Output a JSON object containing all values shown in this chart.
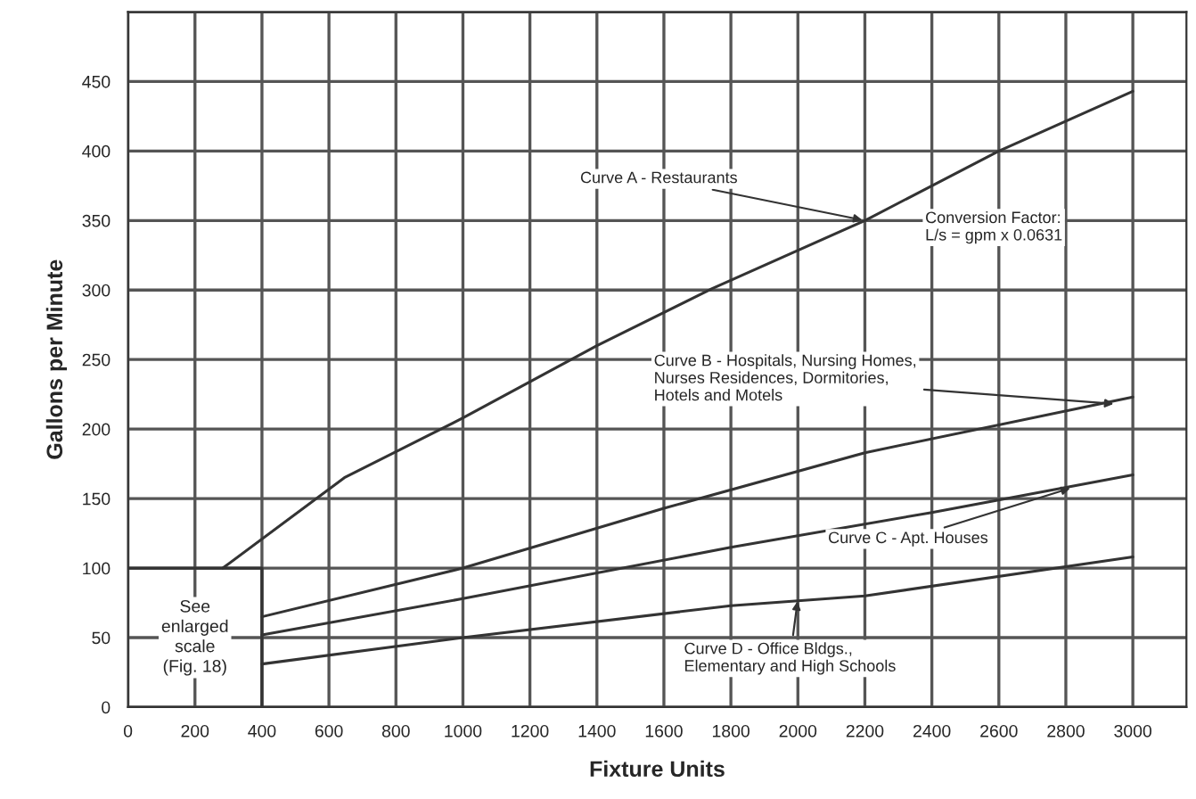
{
  "chart_data": {
    "type": "line",
    "xlabel": "Fixture Units",
    "ylabel": "Gallons per Minute",
    "xlim": [
      0,
      3160
    ],
    "ylim": [
      0,
      500
    ],
    "xticks": [
      {
        "value": 0,
        "label": "0"
      },
      200,
      400,
      600,
      800,
      1000,
      1200,
      1400,
      1600,
      1800,
      2000,
      2200,
      2400,
      2600,
      2800,
      3000
    ],
    "yticks": [
      0,
      50,
      100,
      150,
      200,
      250,
      300,
      350,
      400,
      450,
      {
        "value": 500,
        "label": null
      }
    ],
    "grid": true,
    "legend": false,
    "marker": "none",
    "line_style": "solid",
    "series": [
      {
        "color": "#333333",
        "x": [
          283,
          646,
          1000,
          1400,
          1744,
          2200,
          2600,
          3000
        ],
        "values": [
          100,
          165,
          208,
          260,
          301,
          350,
          400,
          443
        ]
      },
      {
        "color": "#333333",
        "x": [
          400,
          1000,
          1600,
          2200,
          3000
        ],
        "values": [
          65,
          100,
          143,
          183,
          223
        ]
      },
      {
        "color": "#333333",
        "x": [
          400,
          1000,
          1800,
          2400,
          3000
        ],
        "values": [
          52,
          78,
          115,
          140,
          167
        ]
      },
      {
        "color": "#333333",
        "x": [
          400,
          1000,
          1800,
          2200,
          3000
        ],
        "values": [
          31,
          50,
          73,
          80,
          108
        ]
      }
    ],
    "annotations": [
      {
        "text": "Curve A - Restaurants",
        "x": 2200,
        "y": 350
      },
      {
        "text": "Curve B - Hospitals, Nursing Homes,\nNurses Residences, Dormitories,\nHotels and Motels",
        "x": 2950,
        "y": 218
      },
      {
        "text": "Curve C - Apt. Houses",
        "x": 2820,
        "y": 158
      },
      {
        "text": "Curve D - Office Bldgs.,\nElementary and High Schools",
        "x": 2000,
        "y": 78
      },
      "Conversion Factor:\nL/s = gpm x 0.0631",
      "See\nenlarged\nscale\n(Fig. 18)"
    ]
  }
}
